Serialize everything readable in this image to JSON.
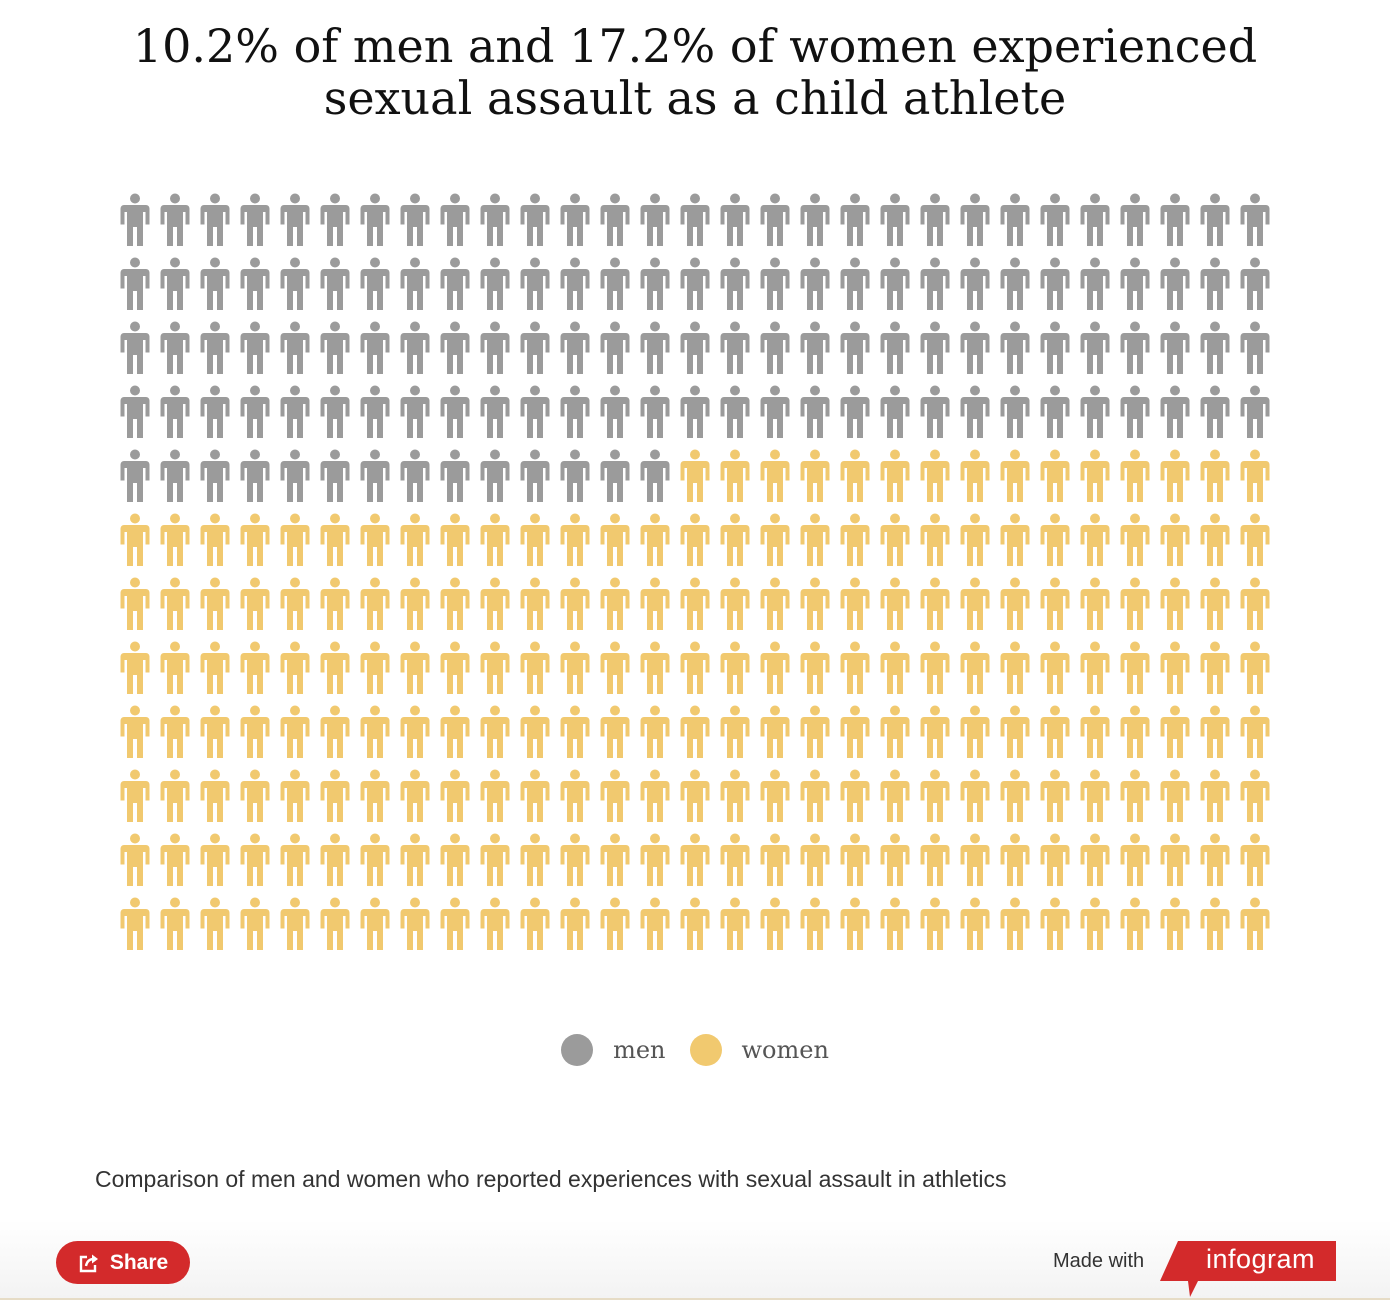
{
  "title": {
    "line1": "10.2% of men and 17.2% of women experienced",
    "line2": "sexual assault as a child athlete"
  },
  "chart_data": {
    "type": "pictogram",
    "title": "10.2% of men and 17.2% of women experienced sexual assault as a child athlete",
    "icon": "person-icon",
    "columns": 29,
    "rows": 12,
    "series": [
      {
        "name": "men",
        "count": 130,
        "color": "#9b9b9b"
      },
      {
        "name": "women",
        "count": 218,
        "color": "#f1c96f"
      }
    ],
    "legend_position": "bottom-center"
  },
  "legend": {
    "items": [
      {
        "label": "men",
        "color": "#9b9b9b"
      },
      {
        "label": "women",
        "color": "#f1c96f"
      }
    ]
  },
  "caption": "Comparison of men and women who reported experiences with sexual assault in athletics",
  "footer": {
    "share_label": "Share",
    "made_with_label": "Made with",
    "brand": "infogram",
    "share_icon": "share-icon",
    "brand_color": "#d32a2b"
  }
}
